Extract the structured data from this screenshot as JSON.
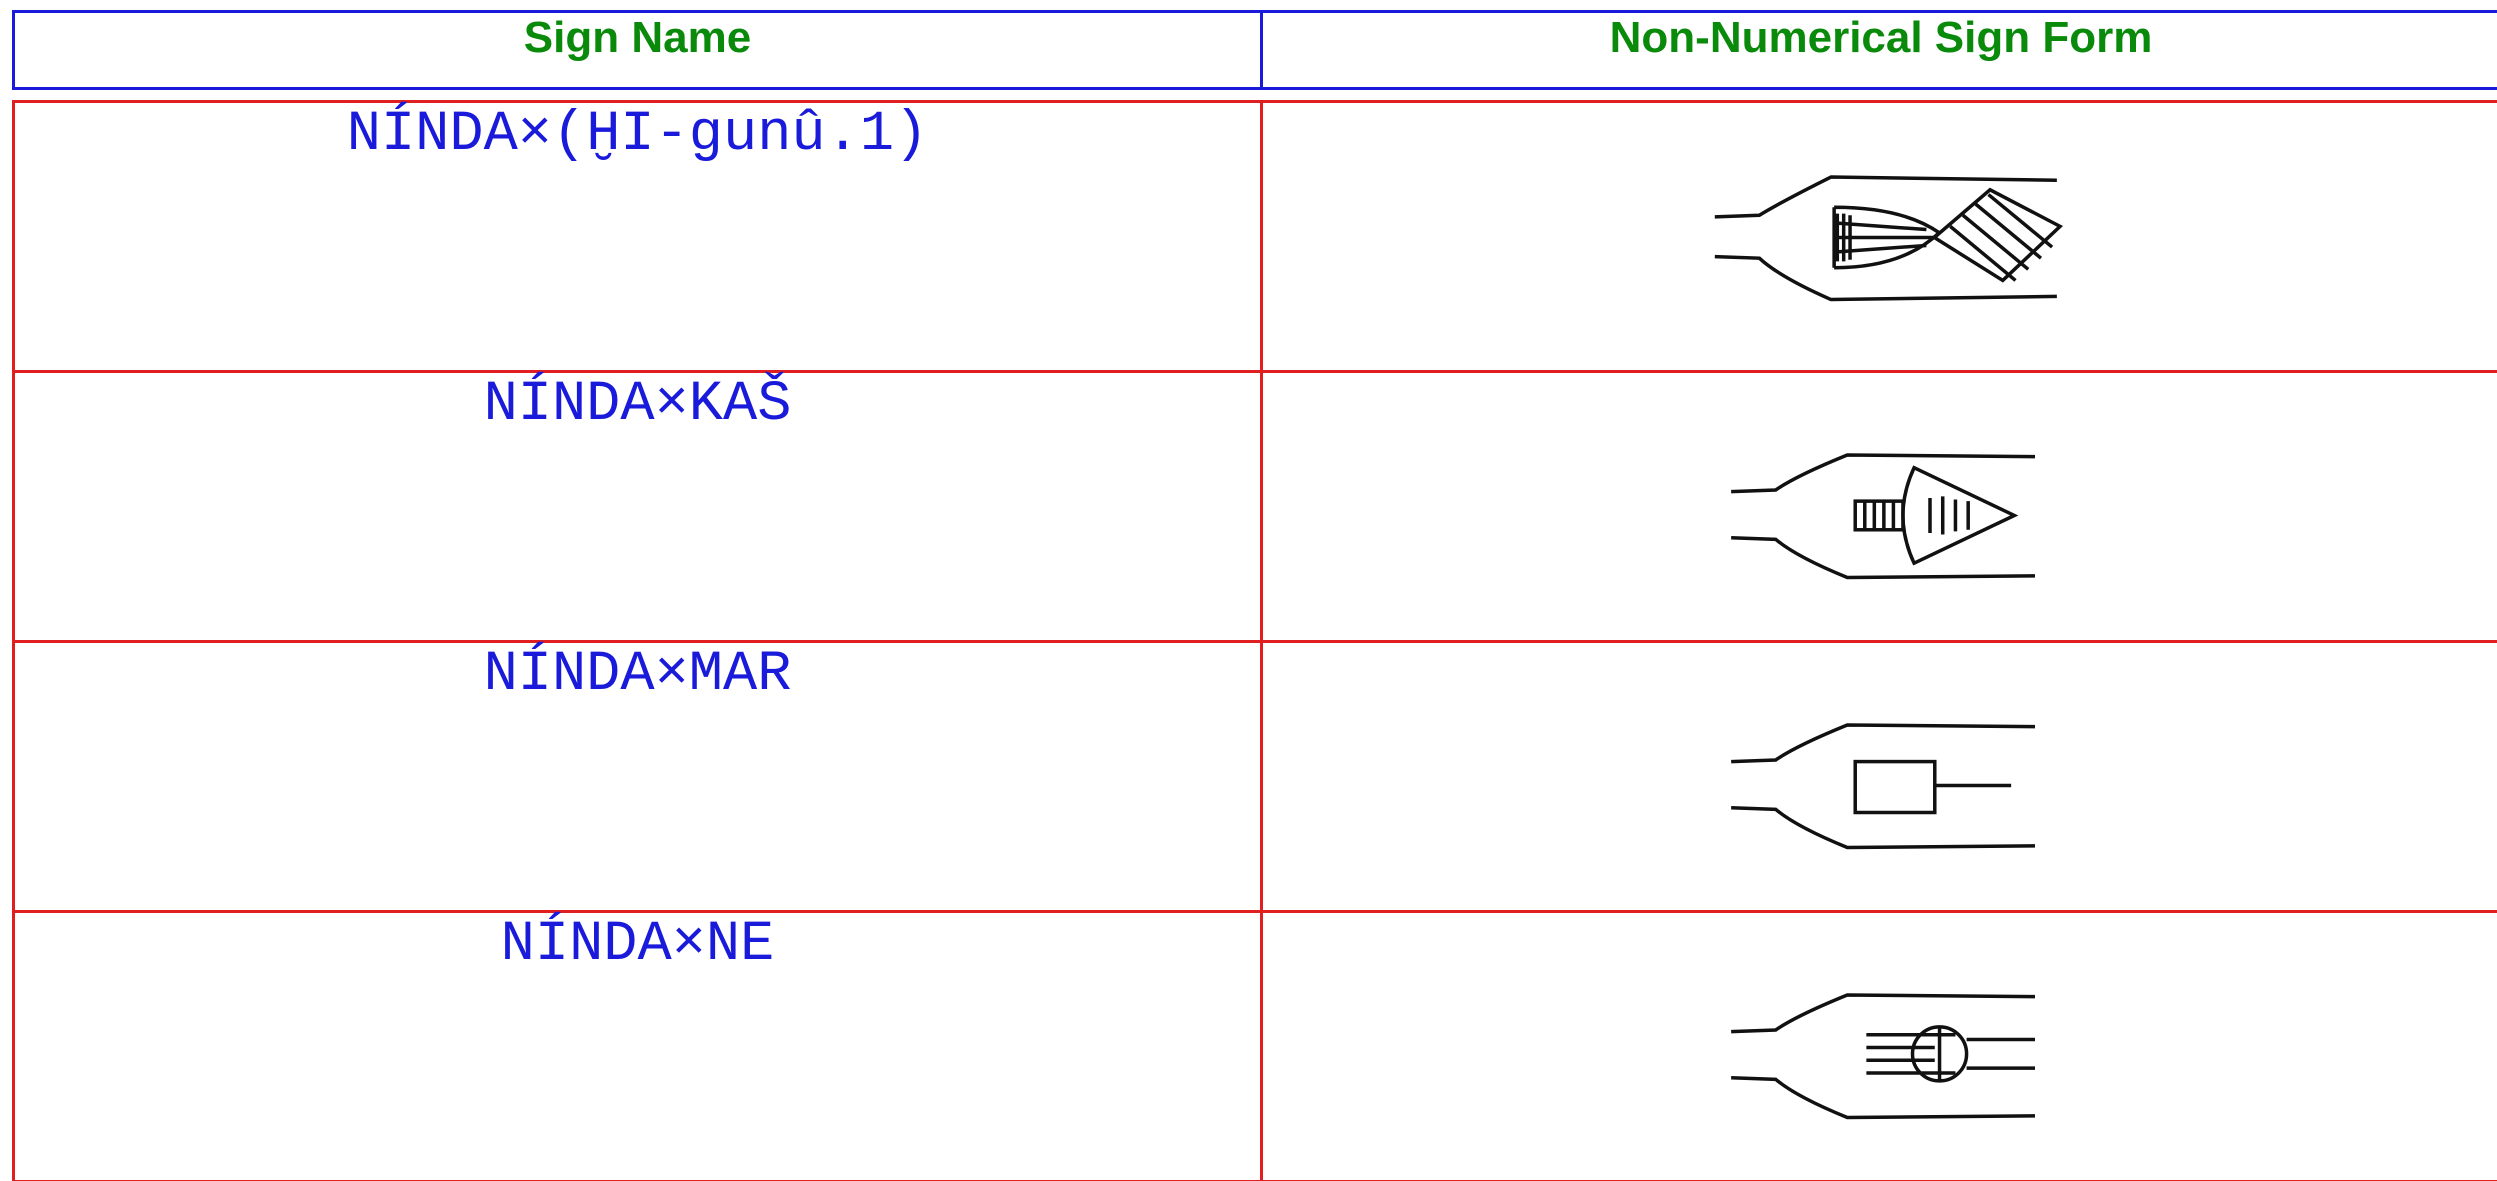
{
  "header": {
    "sign_name": "Sign Name",
    "sign_form": "Non-Numerical Sign Form"
  },
  "table": {
    "rows": [
      {
        "name": "NÍNDA×(ḪI-gunû.1)"
      },
      {
        "name": "NÍNDA×KAŠ"
      },
      {
        "name": "NÍNDA×MAR"
      },
      {
        "name": "NÍNDA×NE"
      }
    ]
  }
}
